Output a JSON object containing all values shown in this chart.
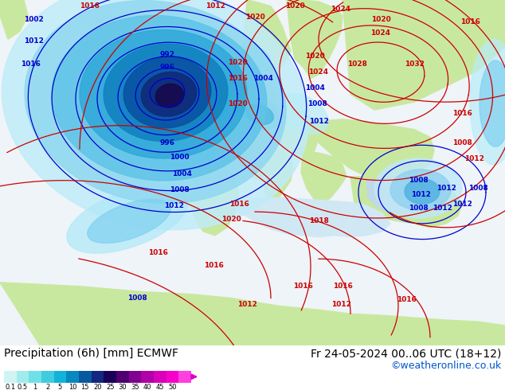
{
  "title_left": "Precipitation (6h) [mm] ECMWF",
  "title_right": "Fr 24-05-2024 00..06 UTC (18+12)",
  "credit": "©weatheronline.co.uk",
  "colorbar_labels": [
    "0.1",
    "0.5",
    "1",
    "2",
    "5",
    "10",
    "15",
    "20",
    "25",
    "30",
    "35",
    "40",
    "45",
    "50"
  ],
  "colorbar_colors": [
    "#d0f4f4",
    "#a0ecec",
    "#70e0e8",
    "#40cce0",
    "#10b4d8",
    "#0888c0",
    "#0858a0",
    "#102880",
    "#1a0058",
    "#500070",
    "#800090",
    "#b000a8",
    "#d800b8",
    "#f800cc",
    "#ff40e0"
  ],
  "land_color": "#c8e8a0",
  "ocean_color": "#e8f4f8",
  "map_bg": "#f0f0f0",
  "title_fontsize": 10,
  "credit_fontsize": 9,
  "label_fontsize": 6
}
